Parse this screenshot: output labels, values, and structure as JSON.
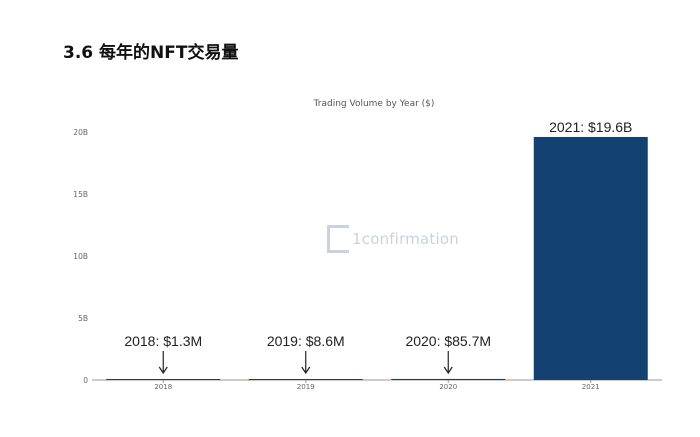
{
  "header": {
    "title": "3.6 每年的NFT交易量"
  },
  "watermark": {
    "text": "1confirmation"
  },
  "colors": {
    "bar": "#124172",
    "axis": "#9a9a9a",
    "annotation": "#222222"
  },
  "chart_data": {
    "type": "bar",
    "title": "Trading Volume by Year ($)",
    "xlabel": "",
    "ylabel": "",
    "categories": [
      "2018",
      "2019",
      "2020",
      "2021"
    ],
    "values": [
      0.0013,
      0.0086,
      0.0857,
      19.6
    ],
    "value_unit": "B",
    "ylim": [
      0,
      20
    ],
    "yticks": [
      0,
      5,
      10,
      15,
      20
    ],
    "ytick_labels": [
      "0",
      "5B",
      "10B",
      "15B",
      "20B"
    ],
    "annotations": [
      "2018: $1.3M",
      "2019: $8.6M",
      "2020: $85.7M",
      "2021: $19.6B"
    ],
    "grid": false,
    "legend": "none"
  }
}
